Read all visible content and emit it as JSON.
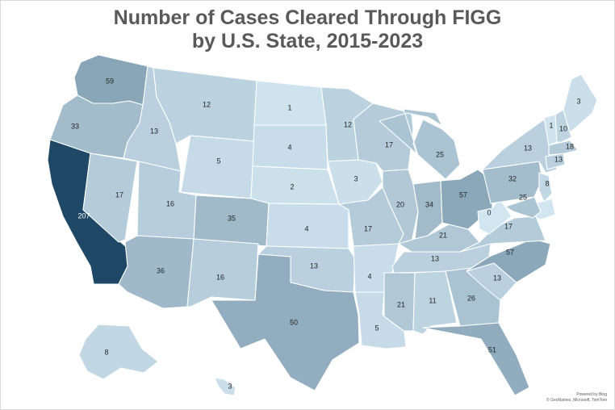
{
  "title_line1": "Number of Cases Cleared Through FIGG",
  "title_line2": "by U.S. State, 2015-2023",
  "credit_line1": "Powered by Bing",
  "credit_line2": "© GeoNames, Microsoft, TomTom",
  "color_scale": {
    "low": "#d2e6f1",
    "high": "#1f4866"
  },
  "chart_data": {
    "type": "choropleth",
    "values": {
      "WA": 59,
      "OR": 33,
      "CA": 207,
      "NV": 17,
      "ID": 13,
      "MT": 12,
      "WY": 5,
      "UT": 16,
      "AZ": 36,
      "CO": 35,
      "NM": 16,
      "ND": 1,
      "SD": 4,
      "NE": 2,
      "KS": 4,
      "OK": 13,
      "TX": 50,
      "MN": 12,
      "IA": 3,
      "MO": 17,
      "AR": 4,
      "LA": 5,
      "WI": 17,
      "IL": 20,
      "MI": 25,
      "IN": 34,
      "OH": 57,
      "KY": 21,
      "TN": 13,
      "MS": 21,
      "AL": 11,
      "GA": 26,
      "FL": 51,
      "SC": 13,
      "NC": 57,
      "VA": 17,
      "WV": 0,
      "PA": 32,
      "MD": 25,
      "NJ": 8,
      "NY": 13,
      "CT": 13,
      "MA": 18,
      "VT": 1,
      "NH": 10,
      "ME": 3,
      "AK": 8,
      "HI": 3
    }
  }
}
